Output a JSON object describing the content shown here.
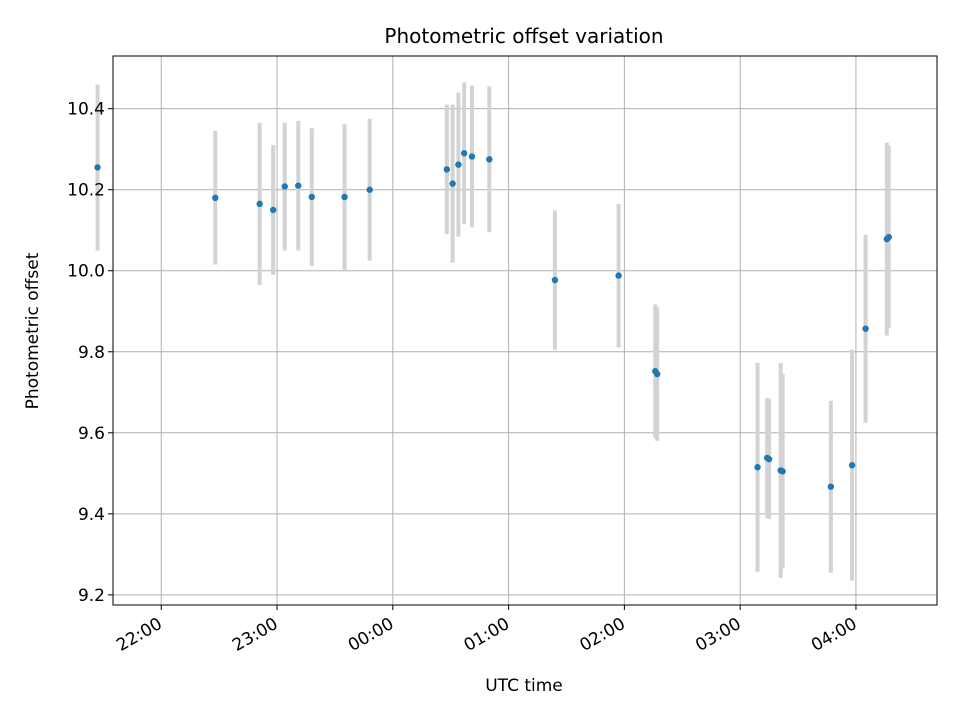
{
  "chart_data": {
    "type": "scatter",
    "title": "Photometric offset variation",
    "xlabel": "UTC time",
    "ylabel": "Photometric offset",
    "grid": true,
    "x_range": [
      "21:35",
      "04:42"
    ],
    "x_ticks": [
      "22:00",
      "23:00",
      "00:00",
      "01:00",
      "02:00",
      "03:00",
      "04:00"
    ],
    "ylim": [
      9.175,
      10.53
    ],
    "y_ticks": [
      "9.2",
      "9.4",
      "9.6",
      "9.8",
      "10.0",
      "10.2",
      "10.4"
    ],
    "point_color": "#1f77b4",
    "errorbar_color": "#d3d3d3",
    "points": [
      {
        "time": "21:27",
        "y": 10.255,
        "err": 0.205
      },
      {
        "time": "22:28",
        "y": 10.18,
        "err": 0.165
      },
      {
        "time": "22:51",
        "y": 10.165,
        "err": 0.2
      },
      {
        "time": "22:58",
        "y": 10.15,
        "err": 0.16
      },
      {
        "time": "23:04",
        "y": 10.208,
        "err": 0.158
      },
      {
        "time": "23:11",
        "y": 10.21,
        "err": 0.16
      },
      {
        "time": "23:18",
        "y": 10.182,
        "err": 0.17
      },
      {
        "time": "23:35",
        "y": 10.182,
        "err": 0.18
      },
      {
        "time": "23:48",
        "y": 10.2,
        "err": 0.175
      },
      {
        "time": "00:28",
        "y": 10.25,
        "err": 0.16
      },
      {
        "time": "00:31",
        "y": 10.215,
        "err": 0.195
      },
      {
        "time": "00:34",
        "y": 10.262,
        "err": 0.178
      },
      {
        "time": "00:37",
        "y": 10.29,
        "err": 0.175
      },
      {
        "time": "00:41",
        "y": 10.282,
        "err": 0.175
      },
      {
        "time": "00:50",
        "y": 10.275,
        "err": 0.18
      },
      {
        "time": "01:24",
        "y": 9.977,
        "err": 0.172
      },
      {
        "time": "01:57",
        "y": 9.988,
        "err": 0.177
      },
      {
        "time": "02:16",
        "y": 9.752,
        "err": 0.165
      },
      {
        "time": "02:17",
        "y": 9.745,
        "err": 0.165
      },
      {
        "time": "03:09",
        "y": 9.515,
        "err": 0.258
      },
      {
        "time": "03:14",
        "y": 9.538,
        "err": 0.148
      },
      {
        "time": "03:15",
        "y": 9.535,
        "err": 0.148
      },
      {
        "time": "03:21",
        "y": 9.507,
        "err": 0.265
      },
      {
        "time": "03:22",
        "y": 9.505,
        "err": 0.24
      },
      {
        "time": "03:47",
        "y": 9.467,
        "err": 0.212
      },
      {
        "time": "03:58",
        "y": 9.52,
        "err": 0.285
      },
      {
        "time": "04:05",
        "y": 9.857,
        "err": 0.232
      },
      {
        "time": "04:16",
        "y": 10.078,
        "err": 0.238
      },
      {
        "time": "04:17",
        "y": 10.083,
        "err": 0.225
      }
    ]
  }
}
